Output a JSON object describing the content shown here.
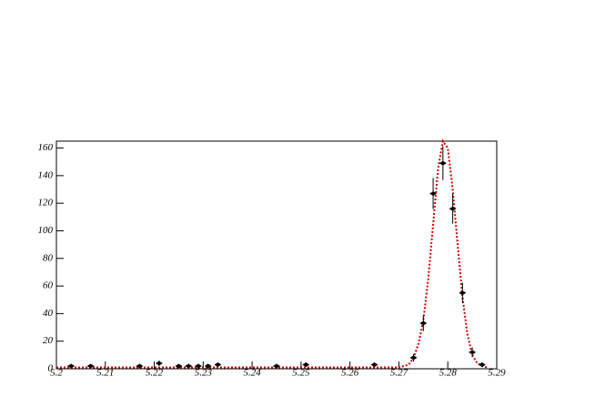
{
  "chart_data": {
    "type": "scatter",
    "x": [
      5.203,
      5.207,
      5.217,
      5.221,
      5.225,
      5.227,
      5.229,
      5.231,
      5.233,
      5.245,
      5.251,
      5.265,
      5.273,
      5.275,
      5.277,
      5.279,
      5.281,
      5.283,
      5.285,
      5.287
    ],
    "values": [
      2,
      2,
      2,
      4,
      2,
      2,
      2,
      2,
      3,
      2,
      3,
      3,
      8,
      33,
      127,
      149,
      116,
      55,
      12,
      3
    ],
    "errors": [
      1.4,
      1.4,
      1.4,
      2,
      1.4,
      1.4,
      1.4,
      1.4,
      1.7,
      1.4,
      1.7,
      1.7,
      2.8,
      5.7,
      11.3,
      12.2,
      10.8,
      7.4,
      3.5,
      1.7
    ],
    "color": "#000000",
    "fit": {
      "color": "#cc0000",
      "x": [
        5.2,
        5.27,
        5.272,
        5.273,
        5.274,
        5.275,
        5.276,
        5.277,
        5.278,
        5.279,
        5.28,
        5.281,
        5.282,
        5.283,
        5.284,
        5.285,
        5.286,
        5.287,
        5.288
      ],
      "values": [
        1,
        1,
        3,
        8,
        18,
        35,
        65,
        105,
        145,
        165,
        160,
        130,
        90,
        52,
        25,
        10,
        4,
        2,
        1
      ]
    },
    "xlim": [
      5.2,
      5.29
    ],
    "xticks": [
      5.2,
      5.21,
      5.22,
      5.23,
      5.24,
      5.25,
      5.26,
      5.27,
      5.28,
      5.29
    ],
    "ylim": [
      0,
      165
    ],
    "yticks": [
      0,
      20,
      40,
      60,
      80,
      100,
      120,
      140,
      160
    ]
  }
}
